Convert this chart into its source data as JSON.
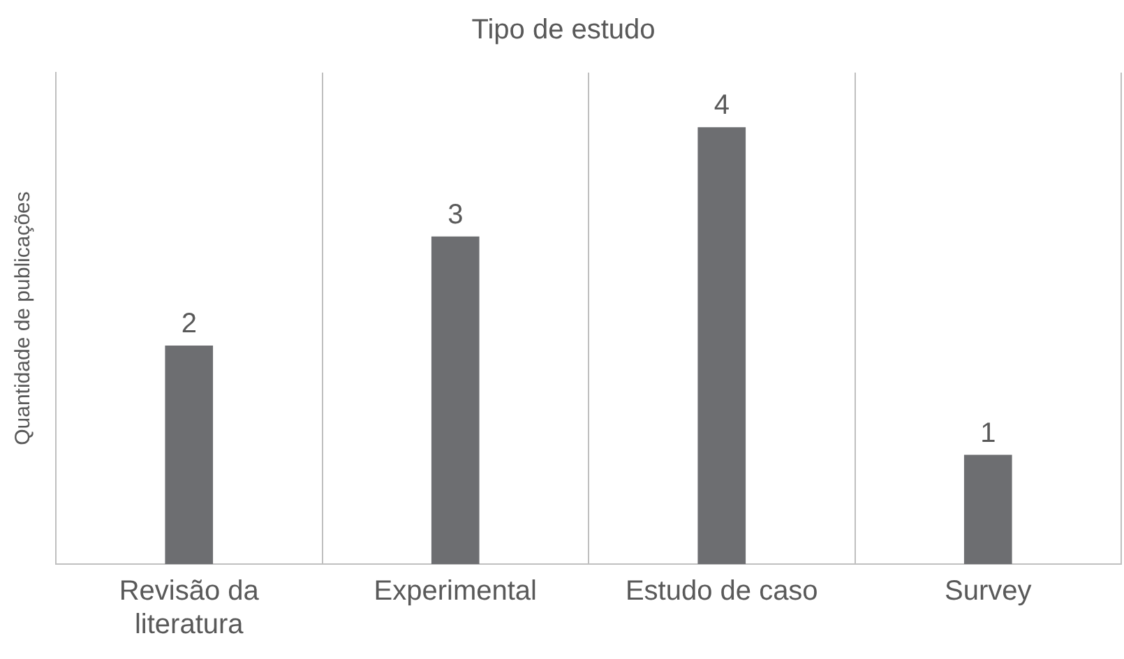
{
  "chart_data": {
    "type": "bar",
    "title": "Tipo de estudo",
    "ylabel": "Quantidade de publicações",
    "categories": [
      "Revisão da literatura",
      "Experimental",
      "Estudo de caso",
      "Survey"
    ],
    "values": [
      2,
      3,
      4,
      1
    ],
    "color": "#6d6e71",
    "data_labels": true,
    "grid": "x",
    "tick_labels": "x"
  }
}
